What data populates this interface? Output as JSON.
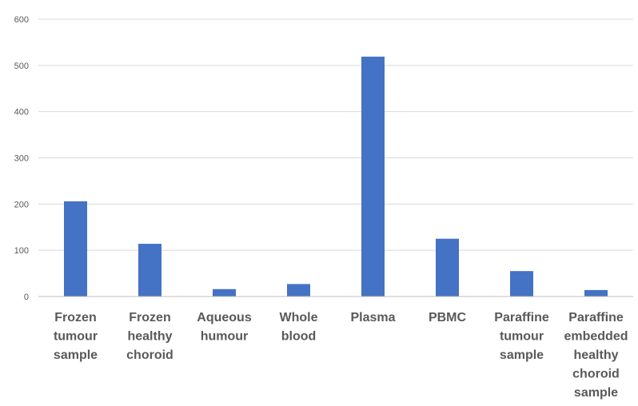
{
  "chart_data": {
    "type": "bar",
    "categories": [
      "Frozen tumour sample",
      "Frozen healthy choroid",
      "Aqueous humour",
      "Whole blood",
      "Plasma",
      "PBMC",
      "Paraffine tumour sample",
      "Paraffine embedded healthy choroid sample"
    ],
    "category_lines": [
      [
        "Frozen",
        "tumour",
        "sample"
      ],
      [
        "Frozen",
        "healthy",
        "choroid"
      ],
      [
        "Aqueous",
        "humour"
      ],
      [
        "Whole",
        "blood"
      ],
      [
        "Plasma"
      ],
      [
        "PBMC"
      ],
      [
        "Paraffine",
        "tumour",
        "sample"
      ],
      [
        "Paraffine",
        "embedded",
        "healthy",
        "choroid",
        "sample"
      ]
    ],
    "values": [
      206,
      114,
      16,
      27,
      519,
      125,
      55,
      14
    ],
    "yticks": [
      "0",
      "100",
      "200",
      "300",
      "400",
      "500",
      "600"
    ],
    "ylim": [
      0,
      600
    ],
    "grid": true,
    "legend": "none",
    "bar_color": "#4472c4",
    "title": "",
    "xlabel": "",
    "ylabel": ""
  }
}
